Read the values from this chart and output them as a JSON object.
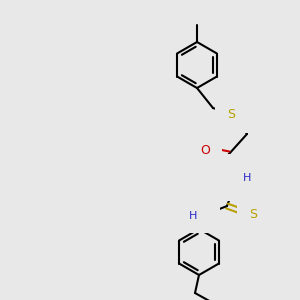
{
  "bg_color": "#e8e8e8",
  "bond_color": "#000000",
  "bond_width": 1.5,
  "atom_colors": {
    "N": "#2929c8",
    "O": "#cc0000",
    "S_thio": "#b8a000",
    "S_thioamide": "#b8a000",
    "C": "#000000",
    "H": "#2929c8"
  },
  "font_size_atom": 9,
  "font_size_H": 8
}
